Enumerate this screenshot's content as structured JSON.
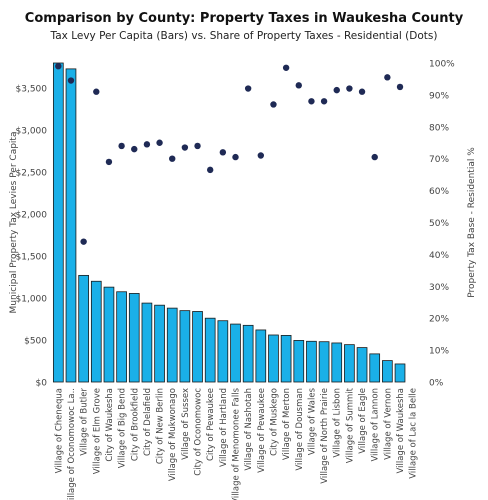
{
  "chart_data": {
    "type": "bar",
    "title": "Comparison by County: Property Taxes in Waukesha County",
    "subtitle": "Tax Levy Per Capita (Bars) vs. Share of Property Taxes - Residential (Dots)",
    "ylabel_left": "Municipal Property Tax Levies Per Capita",
    "ylabel_right": "Property Tax Base - Residential %",
    "ylim_left": [
      0,
      3800
    ],
    "yticks_left": [
      "$0",
      "$500",
      "$1,000",
      "$1,500",
      "$2,000",
      "$2,500",
      "$3,000",
      "$3,500"
    ],
    "ylim_right": [
      0,
      100
    ],
    "yticks_right": [
      "0%",
      "10%",
      "20%",
      "30%",
      "40%",
      "50%",
      "60%",
      "70%",
      "80%",
      "90%",
      "100%"
    ],
    "bar_color": "#1ab0e8",
    "dot_color": "#1f2a55",
    "categories": [
      "Village of Chenequa",
      "Village of Oconomowoc La..",
      "Village of Butler",
      "Village of Elm Grove",
      "City of Waukesha",
      "Village of Big Bend",
      "City of Brookfield",
      "City of Delafield",
      "City of New Berlin",
      "Village of Mukwonago",
      "Village of Sussex",
      "City of Oconomowoc",
      "City of Pewaukee",
      "Village of Hartland",
      "Village of Menomonee Falls",
      "Village of Nashotah",
      "Village of Pewaukee",
      "City of Muskego",
      "Village of Merton",
      "Village of Dousman",
      "Village of Wales",
      "Village of North Prairie",
      "Village of Lisbon",
      "Village of Summit",
      "Village of Eagle",
      "Village of Lannon",
      "Village of Vernon",
      "Village of Waukesha",
      "Village of Lac la Belle"
    ],
    "series": [
      {
        "name": "Tax Levy Per Capita",
        "kind": "bar",
        "axis": "left",
        "values": [
          3800,
          3730,
          1270,
          1200,
          1130,
          1075,
          1055,
          940,
          915,
          880,
          850,
          840,
          760,
          730,
          690,
          675,
          620,
          560,
          555,
          495,
          485,
          480,
          465,
          445,
          410,
          335,
          255,
          215,
          null
        ]
      },
      {
        "name": "Share of Property Taxes - Residential",
        "kind": "dot",
        "axis": "right",
        "values": [
          99,
          94.5,
          44,
          91,
          69,
          74,
          73,
          74.5,
          75,
          70,
          73.5,
          74,
          66.5,
          72,
          70.5,
          92,
          71,
          87,
          98.5,
          93,
          88,
          88,
          91.5,
          92,
          91,
          70.5,
          95.5,
          92.5,
          null
        ]
      }
    ],
    "grid": false,
    "legend": "none"
  }
}
